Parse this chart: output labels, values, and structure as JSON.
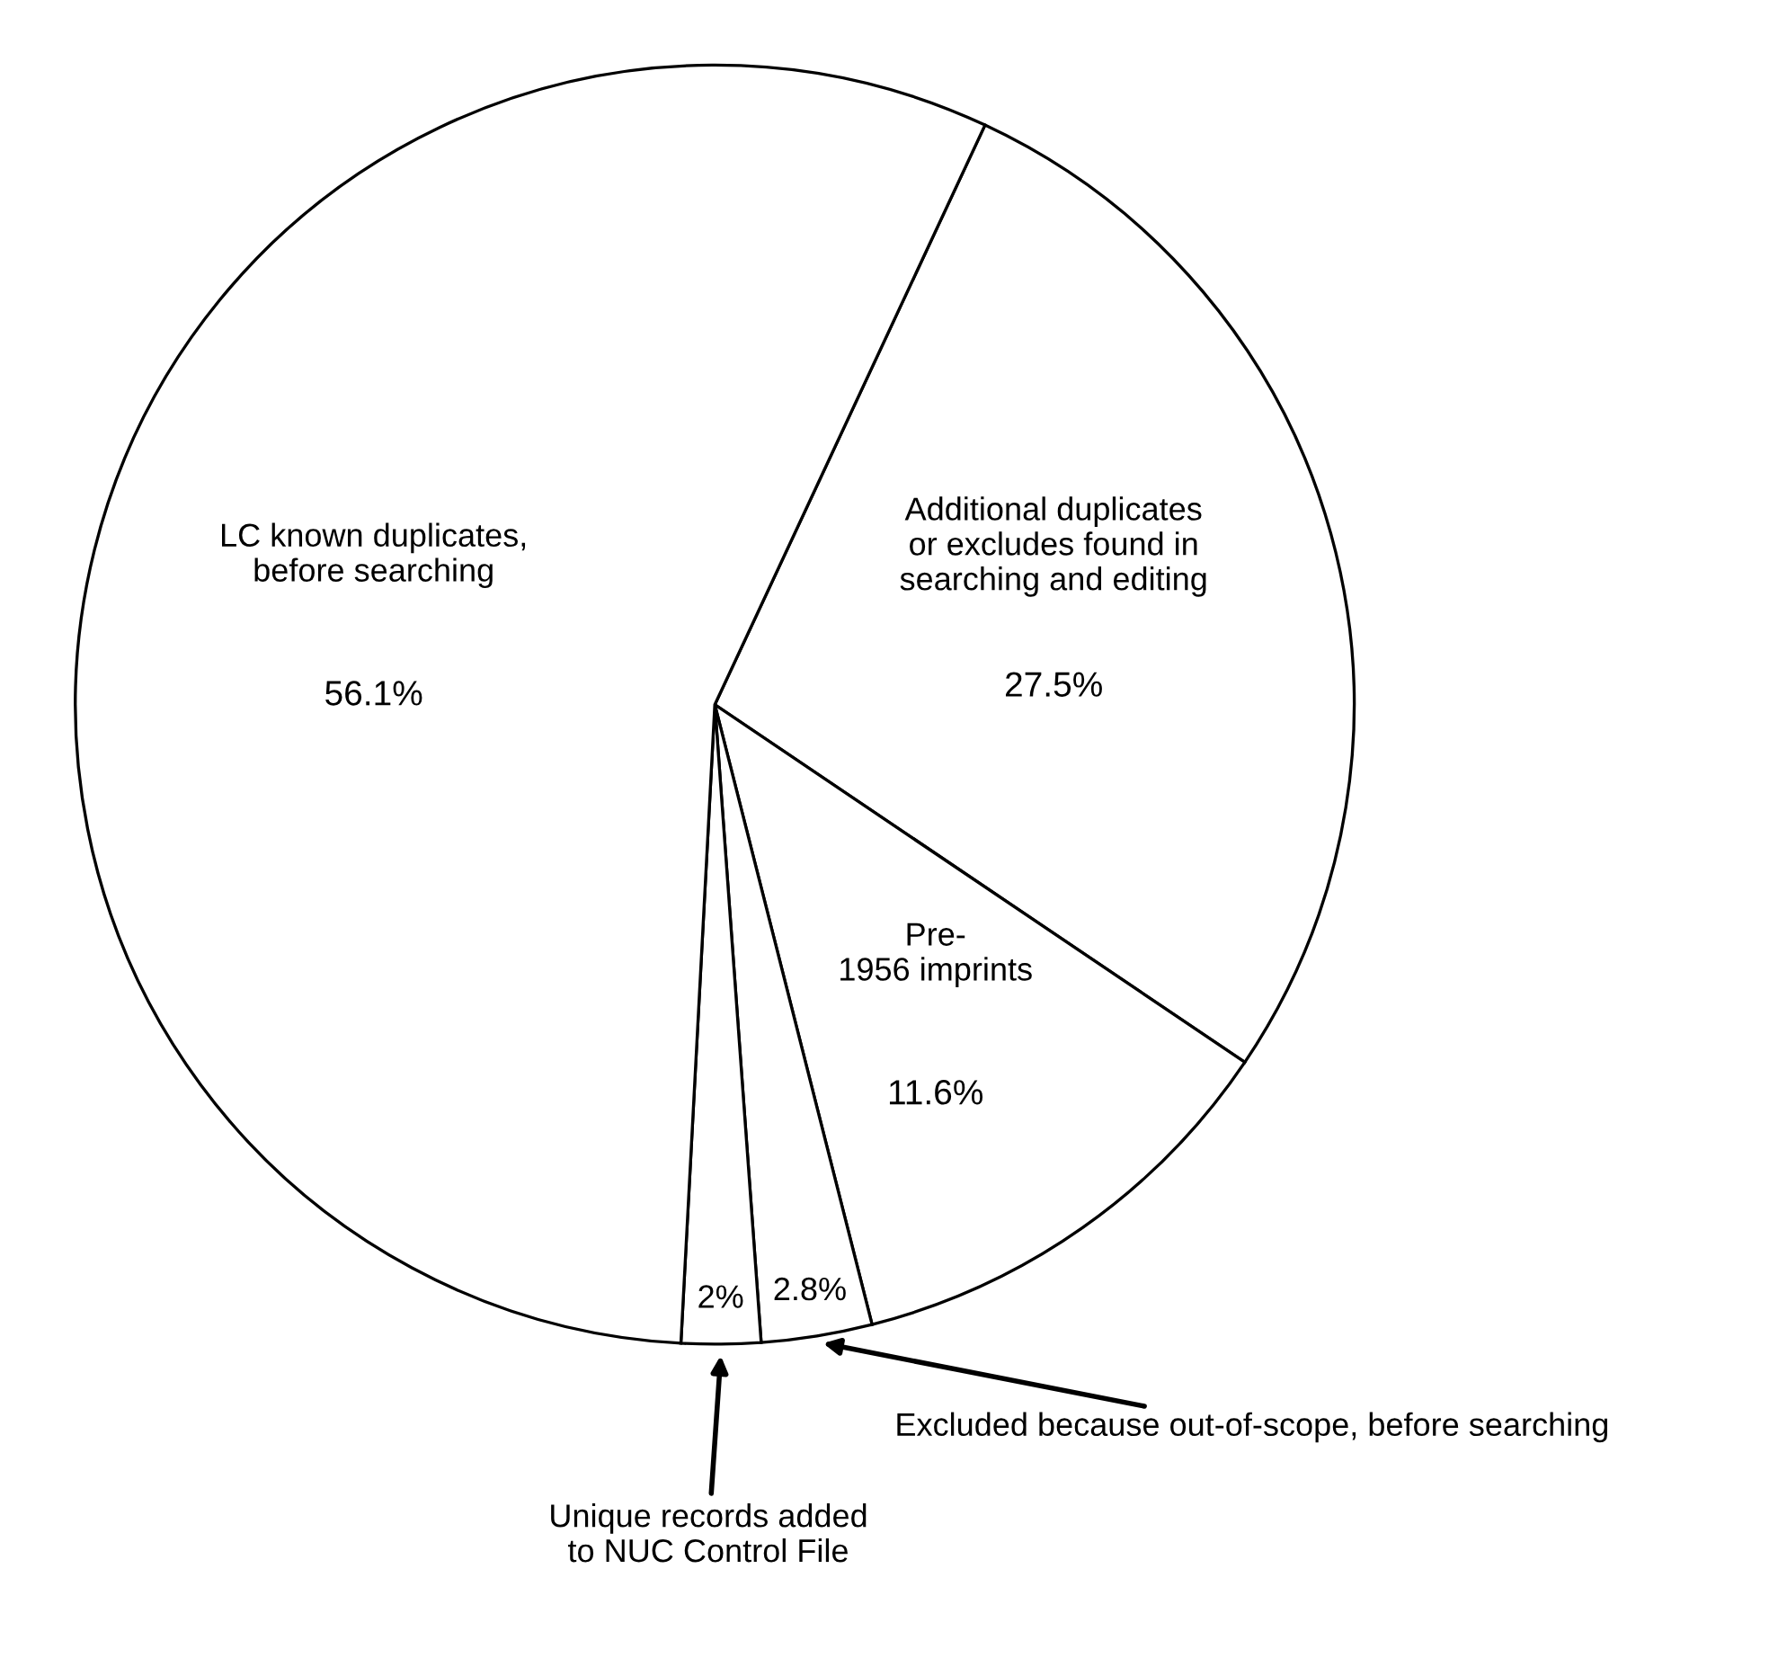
{
  "chart_data": {
    "type": "pie",
    "categories": [
      "Additional duplicates\nor excludes found in\nsearching and editing",
      "Pre-\n1956 imprints",
      "Excluded because out-of-scope, before searching",
      "Unique records added\nto NUC Control File",
      "LC known duplicates,\nbefore searching"
    ],
    "values": [
      27.5,
      11.6,
      2.8,
      2,
      56.1
    ],
    "value_labels": [
      "27.5%",
      "11.6%",
      "2.8%",
      "2%",
      "56.1%"
    ],
    "colors": [
      "#ffffff",
      "#ffffff",
      "#ffffff",
      "#ffffff",
      "#ffffff"
    ],
    "legend": false
  }
}
